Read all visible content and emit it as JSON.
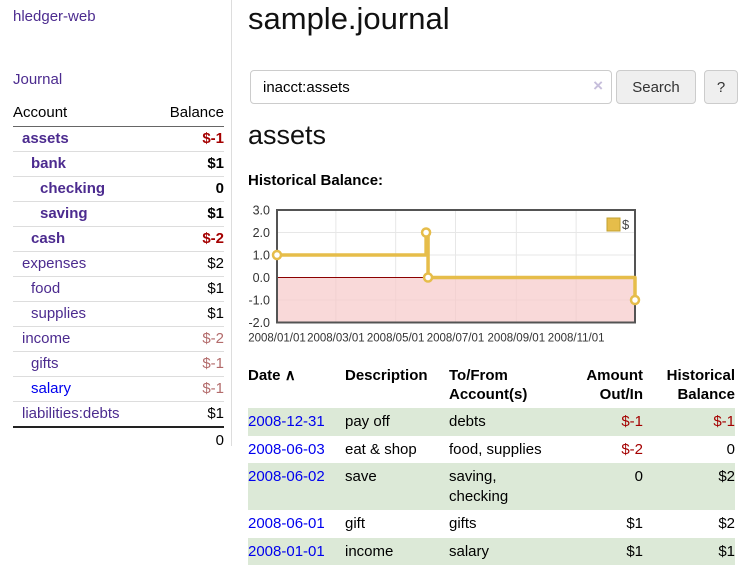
{
  "app_title": "hledger-web",
  "sidebar": {
    "journal_link": "Journal",
    "account_header": "Account",
    "balance_header": "Balance",
    "accounts": [
      {
        "name": "assets",
        "balance": "$-1"
      },
      {
        "name": "bank",
        "balance": "$1"
      },
      {
        "name": "checking",
        "balance": "0"
      },
      {
        "name": "saving",
        "balance": "$1"
      },
      {
        "name": "cash",
        "balance": "$-2"
      },
      {
        "name": "expenses",
        "balance": "$2"
      },
      {
        "name": "food",
        "balance": "$1"
      },
      {
        "name": "supplies",
        "balance": "$1"
      },
      {
        "name": "income",
        "balance": "$-2"
      },
      {
        "name": "gifts",
        "balance": "$-1"
      },
      {
        "name": "salary",
        "balance": "$-1"
      },
      {
        "name": "liabilities:debts",
        "balance": "$1"
      }
    ],
    "total": "0"
  },
  "main": {
    "title": "sample.journal",
    "search": {
      "value": "inacct:assets",
      "clear_icon": "×",
      "button": "Search",
      "help_button": "?"
    },
    "section_title": "assets",
    "chart_label": "Historical Balance:"
  },
  "register": {
    "headers": {
      "date": "Date",
      "description": "Description",
      "accounts": "To/From Account(s)",
      "amount": "Amount Out/In",
      "balance": "Historical Balance"
    },
    "sort_icon": "∧",
    "rows": [
      {
        "date": "2008-12-31",
        "description": "pay off",
        "accounts": "debts",
        "amount": "$-1",
        "balance": "$-1"
      },
      {
        "date": "2008-06-03",
        "description": "eat & shop",
        "accounts": "food, supplies",
        "amount": "$-2",
        "balance": "0"
      },
      {
        "date": "2008-06-02",
        "description": "save",
        "accounts": "saving, checking",
        "amount": "0",
        "balance": "$2"
      },
      {
        "date": "2008-06-01",
        "description": "gift",
        "accounts": "gifts",
        "amount": "$1",
        "balance": "$2"
      },
      {
        "date": "2008-01-01",
        "description": "income",
        "accounts": "salary",
        "amount": "$1",
        "balance": "$1"
      }
    ]
  },
  "chart_data": {
    "type": "line",
    "title": "Historical Balance:",
    "step": true,
    "series": [
      {
        "name": "$",
        "color": "#e6bd4a",
        "points": [
          [
            "2008-01-01",
            1
          ],
          [
            "2008-06-01",
            2
          ],
          [
            "2008-06-03",
            0
          ],
          [
            "2008-12-31",
            -1
          ]
        ]
      }
    ],
    "x_range": [
      "2008-01-01",
      "2008-12-31"
    ],
    "x_ticks": [
      "2008/01/01",
      "2008/03/01",
      "2008/05/01",
      "2008/07/01",
      "2008/09/01",
      "2008/11/01"
    ],
    "y_ticks": [
      "3.0",
      "2.0",
      "1.0",
      "0.0",
      "-1.0",
      "-2.0"
    ],
    "ylim": [
      -2,
      3
    ],
    "grid": true,
    "grid_color": "#e7e7e7",
    "plot_border_color": "#545454",
    "negative_region_color": "#f6caca",
    "zero_line_color": "#8b0000",
    "legend": {
      "label": "$",
      "position": "top-right"
    }
  }
}
